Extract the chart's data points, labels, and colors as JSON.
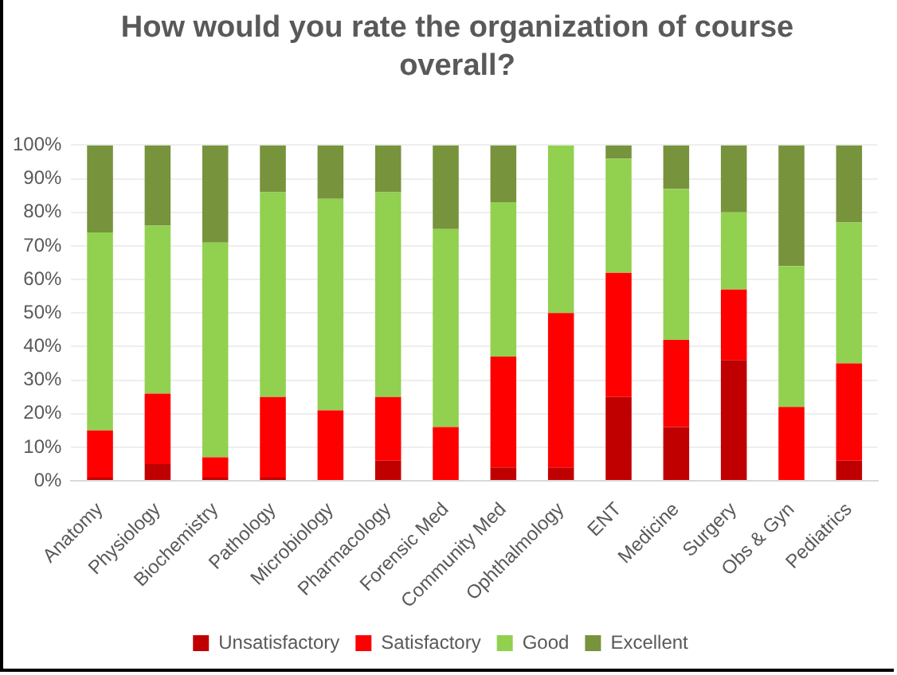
{
  "chart_data": {
    "type": "bar",
    "stacked": true,
    "title": "How would you rate the organization of course overall?",
    "categories": [
      "Anatomy",
      "Physiology",
      "Biochemistry",
      "Pathology",
      "Microbiology",
      "Pharmacology",
      "Forensic Med",
      "Community Med",
      "Ophthalmology",
      "ENT",
      "Medicine",
      "Surgery",
      "Obs & Gyn",
      "Pediatrics"
    ],
    "series": [
      {
        "name": "Unsatisfactory",
        "color": "#c00000",
        "values": [
          1,
          5,
          1,
          1,
          0,
          6,
          0,
          4,
          4,
          25,
          16,
          36,
          0,
          6
        ]
      },
      {
        "name": "Satisfactory",
        "color": "#ff0000",
        "values": [
          14,
          21,
          6,
          24,
          21,
          19,
          16,
          33,
          46,
          37,
          26,
          21,
          22,
          29
        ]
      },
      {
        "name": "Good",
        "color": "#92d050",
        "values": [
          59,
          50,
          64,
          61,
          63,
          61,
          59,
          46,
          50,
          34,
          45,
          23,
          42,
          42
        ]
      },
      {
        "name": "Excellent",
        "color": "#77933c",
        "values": [
          26,
          24,
          29,
          14,
          16,
          14,
          25,
          17,
          0,
          4,
          13,
          20,
          36,
          23
        ]
      }
    ],
    "ylim": [
      0,
      100
    ],
    "yticks": [
      {
        "value": 0,
        "label": "0%"
      },
      {
        "value": 10,
        "label": "10%"
      },
      {
        "value": 20,
        "label": "20%"
      },
      {
        "value": 30,
        "label": "30%"
      },
      {
        "value": 40,
        "label": "40%"
      },
      {
        "value": 50,
        "label": "50%"
      },
      {
        "value": 60,
        "label": "60%"
      },
      {
        "value": 70,
        "label": "70%"
      },
      {
        "value": 80,
        "label": "80%"
      },
      {
        "value": 90,
        "label": "90%"
      },
      {
        "value": 100,
        "label": "100%"
      }
    ],
    "grid": "y",
    "legend": "bottom"
  }
}
